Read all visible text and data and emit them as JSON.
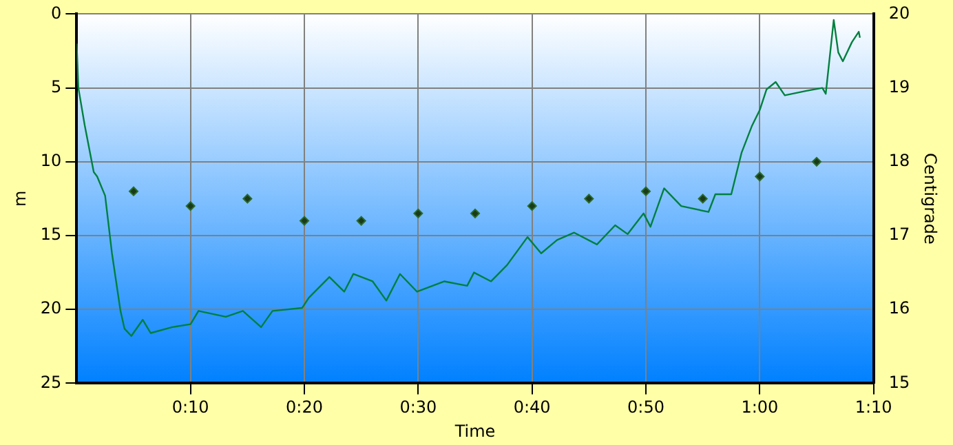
{
  "chart_data": {
    "type": "line",
    "xlabel": "Time",
    "ylabel": "m",
    "y2label": "Centigrade",
    "xlim": [
      0,
      70
    ],
    "xticks": [
      {
        "value": 10,
        "label": "0:10"
      },
      {
        "value": 20,
        "label": "0:20"
      },
      {
        "value": 30,
        "label": "0:30"
      },
      {
        "value": 40,
        "label": "0:40"
      },
      {
        "value": 50,
        "label": "0:50"
      },
      {
        "value": 60,
        "label": "1:00"
      },
      {
        "value": 70,
        "label": "1:10"
      }
    ],
    "ylim": [
      25,
      0
    ],
    "yticks": [
      0,
      5,
      10,
      15,
      20,
      25
    ],
    "y2lim": [
      15,
      20
    ],
    "y2ticks": [
      15,
      16,
      17,
      18,
      19,
      20
    ],
    "grid": true,
    "legend": false,
    "series": [
      {
        "type": "line",
        "color": "#008040",
        "marker": "none",
        "x": [
          0,
          0.15,
          0.7,
          1.5,
          1.8,
          2.5,
          3.1,
          3.85,
          4.2,
          4.8,
          5.8,
          6.5,
          8.4,
          10,
          10.7,
          13.1,
          14.6,
          16.2,
          17.2,
          19.8,
          20.4,
          22.2,
          23.5,
          24.3,
          26,
          27.2,
          28.4,
          29.9,
          32.3,
          34.3,
          34.9,
          36.4,
          37.8,
          39.6,
          40.8,
          42.2,
          43.7,
          45.7,
          47.3,
          48.4,
          49.8,
          50.4,
          51.6,
          53.1,
          55.5,
          56.1,
          57.5,
          58.4,
          59.3,
          60,
          60.6,
          61.4,
          62.2,
          64.1,
          65.5,
          65.8,
          66.5,
          66.9,
          67.3,
          68.1,
          68.7,
          68.8
        ],
        "values": [
          2,
          5,
          7.5,
          10.7,
          11,
          12.3,
          16.2,
          20.1,
          21.3,
          21.8,
          20.7,
          21.6,
          21.2,
          21,
          20.1,
          20.5,
          20.1,
          21.2,
          20.1,
          19.9,
          19.2,
          17.8,
          18.8,
          17.6,
          18.1,
          19.4,
          17.6,
          18.8,
          18.1,
          18.4,
          17.5,
          18.1,
          17,
          15.1,
          16.2,
          15.3,
          14.8,
          15.6,
          14.3,
          14.9,
          13.5,
          14.4,
          11.8,
          13,
          13.4,
          12.2,
          12.2,
          9.4,
          7.6,
          6.5,
          5.1,
          4.6,
          5.5,
          5.2,
          5,
          5.4,
          0.4,
          2.6,
          3.2,
          1.9,
          1.2,
          1.6
        ]
      },
      {
        "type": "scatter",
        "axis": "y2",
        "color": "#1a3a1a",
        "marker": "diamond",
        "x": [
          5,
          10,
          15,
          20,
          25,
          30,
          35,
          40,
          45,
          50,
          55,
          60,
          65
        ],
        "values": [
          17.6,
          17.4,
          17.5,
          17.2,
          17.2,
          17.3,
          17.3,
          17.4,
          17.5,
          17.6,
          17.5,
          17.8,
          18
        ]
      }
    ]
  }
}
